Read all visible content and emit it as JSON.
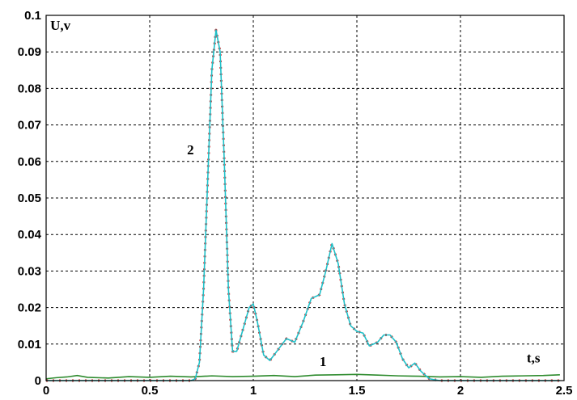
{
  "chart_data": {
    "type": "line",
    "title": "",
    "xlabel": "t,s",
    "ylabel": "U,v",
    "xlim": [
      0,
      2.5
    ],
    "ylim": [
      0,
      0.1
    ],
    "grid": true,
    "x_ticks": [
      "0",
      "0.5",
      "1",
      "1.5",
      "2",
      "2.5"
    ],
    "y_ticks": [
      "0",
      "0.01",
      "0.02",
      "0.03",
      "0.04",
      "0.05",
      "0.06",
      "0.07",
      "0.08",
      "0.09",
      "0.1"
    ],
    "x_tick_values": [
      0,
      0.5,
      1,
      1.5,
      2,
      2.5
    ],
    "y_tick_values": [
      0,
      0.01,
      0.02,
      0.03,
      0.04,
      0.05,
      0.06,
      0.07,
      0.08,
      0.09,
      0.1
    ],
    "series": [
      {
        "name": "1",
        "color": "#2e8b2e",
        "x": [
          0,
          0.05,
          0.1,
          0.15,
          0.2,
          0.3,
          0.4,
          0.5,
          0.6,
          0.7,
          0.8,
          0.9,
          1.0,
          1.1,
          1.2,
          1.3,
          1.4,
          1.5,
          1.6,
          1.7,
          1.8,
          1.9,
          2.0,
          2.1,
          2.2,
          2.3,
          2.4,
          2.48
        ],
        "y": [
          0.0005,
          0.0008,
          0.001,
          0.0014,
          0.0009,
          0.0007,
          0.0011,
          0.0009,
          0.0012,
          0.001,
          0.0013,
          0.0011,
          0.0012,
          0.0014,
          0.0011,
          0.0015,
          0.0016,
          0.0017,
          0.0015,
          0.0013,
          0.0012,
          0.001,
          0.0011,
          0.0009,
          0.0012,
          0.0013,
          0.0014,
          0.0016
        ]
      },
      {
        "name": "2",
        "color": "#20c0c8",
        "marker_color": "#cc2222",
        "x": [
          0,
          0.5,
          0.7,
          0.72,
          0.74,
          0.76,
          0.78,
          0.8,
          0.82,
          0.84,
          0.86,
          0.88,
          0.9,
          0.92,
          0.94,
          0.96,
          0.98,
          1.0,
          1.02,
          1.05,
          1.08,
          1.12,
          1.16,
          1.2,
          1.24,
          1.28,
          1.32,
          1.35,
          1.38,
          1.41,
          1.44,
          1.47,
          1.5,
          1.53,
          1.56,
          1.6,
          1.63,
          1.66,
          1.69,
          1.72,
          1.75,
          1.78,
          1.81,
          1.85,
          1.9,
          2.0,
          2.2,
          2.4,
          2.48
        ],
        "y": [
          0,
          0,
          0,
          0.0005,
          0.005,
          0.025,
          0.055,
          0.085,
          0.096,
          0.09,
          0.06,
          0.025,
          0.008,
          0.008,
          0.012,
          0.016,
          0.02,
          0.021,
          0.016,
          0.007,
          0.0055,
          0.0085,
          0.0115,
          0.0105,
          0.016,
          0.0225,
          0.0235,
          0.03,
          0.0375,
          0.032,
          0.021,
          0.015,
          0.0135,
          0.013,
          0.0095,
          0.0105,
          0.0125,
          0.0125,
          0.0105,
          0.006,
          0.0035,
          0.0048,
          0.0025,
          0.0005,
          0,
          0,
          0,
          0,
          0
        ]
      }
    ],
    "annotations": [
      {
        "text": "2",
        "x": 0.68,
        "y": 0.062
      },
      {
        "text": "1",
        "x": 1.32,
        "y": 0.004
      },
      {
        "text": "t,s",
        "x": 2.32,
        "y": 0.005
      },
      {
        "text": "U,v",
        "x": 0.02,
        "y": 0.096
      }
    ]
  }
}
